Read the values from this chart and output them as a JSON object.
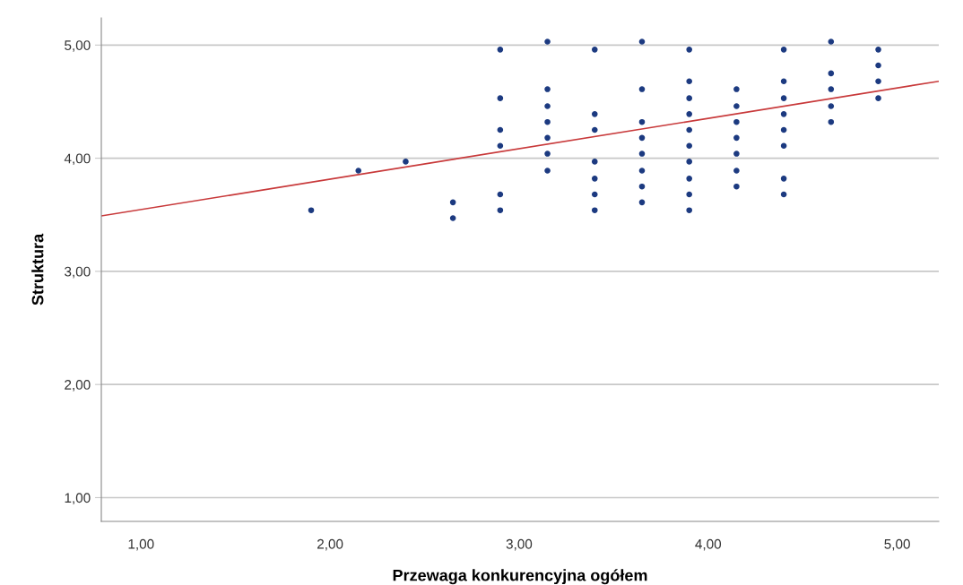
{
  "chart_data": {
    "type": "scatter",
    "xlabel": "Przewaga konkurencyjna ogółem",
    "ylabel": "Struktura",
    "xlim": [
      0.79,
      5.22
    ],
    "ylim": [
      0.79,
      5.24
    ],
    "xticks": [
      {
        "value": 1,
        "label": "1,00"
      },
      {
        "value": 2,
        "label": "2,00"
      },
      {
        "value": 3,
        "label": "3,00"
      },
      {
        "value": 4,
        "label": "4,00"
      },
      {
        "value": 5,
        "label": "5,00"
      }
    ],
    "yticks": [
      {
        "value": 1,
        "label": "1,00"
      },
      {
        "value": 2,
        "label": "2,00"
      },
      {
        "value": 3,
        "label": "3,00"
      },
      {
        "value": 4,
        "label": "4,00"
      },
      {
        "value": 5,
        "label": "5,00"
      }
    ],
    "grid": "y",
    "marker": "circle",
    "series": [
      {
        "color": "#1c3a80",
        "x": [
          1.9,
          2.15,
          2.4,
          2.65,
          2.65,
          2.9,
          2.9,
          2.9,
          2.9,
          2.9,
          2.9,
          3.15,
          3.15,
          3.15,
          3.15,
          3.15,
          3.15,
          3.15,
          3.4,
          3.4,
          3.4,
          3.4,
          3.4,
          3.4,
          3.4,
          3.65,
          3.65,
          3.65,
          3.65,
          3.65,
          3.65,
          3.65,
          3.65,
          3.9,
          3.9,
          3.9,
          3.9,
          3.9,
          3.9,
          3.9,
          3.9,
          3.9,
          3.9,
          4.15,
          4.15,
          4.15,
          4.15,
          4.15,
          4.15,
          4.15,
          4.4,
          4.4,
          4.4,
          4.4,
          4.4,
          4.4,
          4.4,
          4.4,
          4.65,
          4.65,
          4.65,
          4.65,
          4.65,
          4.9,
          4.9,
          4.9,
          4.9
        ],
        "values": [
          3.54,
          3.89,
          3.97,
          3.61,
          3.47,
          4.96,
          4.53,
          4.25,
          4.11,
          3.68,
          3.54,
          5.03,
          4.61,
          4.46,
          4.32,
          4.18,
          4.04,
          3.89,
          4.96,
          4.39,
          4.25,
          3.97,
          3.82,
          3.68,
          3.54,
          5.03,
          4.61,
          4.32,
          4.18,
          4.04,
          3.89,
          3.75,
          3.61,
          4.96,
          4.68,
          4.53,
          4.39,
          4.25,
          4.11,
          3.97,
          3.82,
          3.68,
          3.54,
          4.61,
          4.46,
          4.32,
          4.18,
          4.04,
          3.89,
          3.75,
          4.96,
          4.68,
          4.53,
          4.39,
          4.25,
          4.11,
          3.82,
          3.68,
          5.03,
          4.75,
          4.61,
          4.46,
          4.32,
          4.96,
          4.82,
          4.68,
          4.53
        ]
      },
      {
        "type": "line",
        "color": "#c8393a",
        "marker": "none",
        "x": [
          0.79,
          5.22
        ],
        "values": [
          3.49,
          4.68
        ]
      }
    ]
  }
}
